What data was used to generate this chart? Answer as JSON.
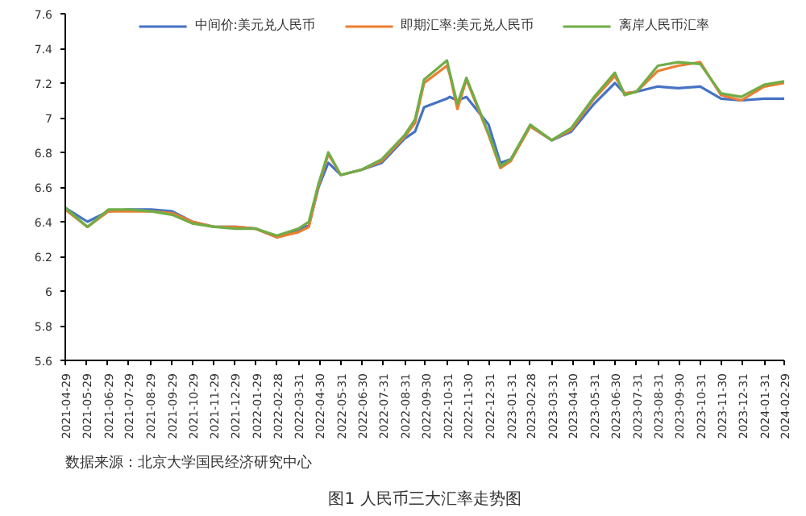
{
  "chart_data": {
    "type": "line",
    "title": "图1 人民币三大汇率走势图",
    "annotations": [
      "数据来源：北京大学国民经济研究中心"
    ],
    "x": [
      "2021-04-29",
      "2021-05-31",
      "2021-06-30",
      "2021-07-30",
      "2021-08-31",
      "2021-09-30",
      "2021-10-29",
      "2021-11-30",
      "2021-12-31",
      "2022-01-28",
      "2022-02-28",
      "2022-03-31",
      "2022-04-15",
      "2022-04-29",
      "2022-05-13",
      "2022-05-31",
      "2022-06-30",
      "2022-07-29",
      "2022-08-31",
      "2022-09-15",
      "2022-09-28",
      "2022-10-31",
      "2022-11-04",
      "2022-11-15",
      "2022-11-28",
      "2022-12-30",
      "2023-01-16",
      "2023-01-31",
      "2023-02-28",
      "2023-03-31",
      "2023-04-28",
      "2023-05-31",
      "2023-06-30",
      "2023-07-14",
      "2023-07-31",
      "2023-08-31",
      "2023-09-29",
      "2023-10-31",
      "2023-11-30",
      "2023-12-29",
      "2024-01-31",
      "2024-02-29"
    ],
    "series": [
      {
        "name": "中间价:美元兑人民币",
        "color": "#4472c4",
        "values": [
          6.48,
          6.4,
          6.46,
          6.47,
          6.47,
          6.46,
          6.4,
          6.37,
          6.37,
          6.36,
          6.31,
          6.35,
          6.38,
          6.6,
          6.74,
          6.67,
          6.7,
          6.74,
          6.88,
          6.92,
          7.06,
          7.11,
          7.12,
          7.1,
          7.12,
          6.96,
          6.74,
          6.76,
          6.95,
          6.87,
          6.92,
          7.08,
          7.2,
          7.14,
          7.15,
          7.18,
          7.17,
          7.18,
          7.11,
          7.1,
          7.11,
          7.11
        ]
      },
      {
        "name": "即期汇率:美元兑人民币",
        "color": "#ed7d31",
        "values": [
          6.47,
          6.37,
          6.46,
          6.46,
          6.46,
          6.45,
          6.4,
          6.37,
          6.37,
          6.36,
          6.31,
          6.34,
          6.37,
          6.61,
          6.79,
          6.67,
          6.7,
          6.75,
          6.89,
          6.97,
          7.2,
          7.3,
          7.25,
          7.05,
          7.22,
          6.9,
          6.71,
          6.75,
          6.95,
          6.87,
          6.93,
          7.11,
          7.24,
          7.14,
          7.15,
          7.27,
          7.3,
          7.32,
          7.13,
          7.1,
          7.18,
          7.2
        ]
      },
      {
        "name": "离岸人民币汇率",
        "color": "#70ad47",
        "values": [
          6.48,
          6.37,
          6.47,
          6.47,
          6.46,
          6.44,
          6.39,
          6.37,
          6.36,
          6.36,
          6.32,
          6.36,
          6.4,
          6.62,
          6.8,
          6.67,
          6.7,
          6.76,
          6.9,
          6.99,
          7.22,
          7.33,
          7.26,
          7.08,
          7.23,
          6.91,
          6.72,
          6.76,
          6.96,
          6.87,
          6.94,
          7.12,
          7.26,
          7.13,
          7.15,
          7.3,
          7.32,
          7.31,
          7.14,
          7.12,
          7.19,
          7.21
        ]
      }
    ],
    "xlim": [
      "2021-04-29",
      "2024-02-29"
    ],
    "xticks": [
      "2021-04-29",
      "2021-05-29",
      "2021-06-29",
      "2021-07-29",
      "2021-08-29",
      "2021-09-29",
      "2021-10-29",
      "2021-11-29",
      "2021-12-29",
      "2022-01-29",
      "2022-02-28",
      "2022-03-31",
      "2022-04-30",
      "2022-05-31",
      "2022-06-30",
      "2022-07-31",
      "2022-08-31",
      "2022-09-30",
      "2022-10-31",
      "2022-11-30",
      "2022-12-31",
      "2023-01-31",
      "2023-02-28",
      "2023-03-31",
      "2023-04-30",
      "2023-05-31",
      "2023-06-30",
      "2023-07-31",
      "2023-08-31",
      "2023-09-30",
      "2023-10-31",
      "2023-11-30",
      "2023-12-31",
      "2024-01-31",
      "2024-02-29"
    ],
    "ylim": [
      5.6,
      7.6
    ],
    "yticks": [
      5.6,
      5.8,
      6,
      6.2,
      6.4,
      6.6,
      6.8,
      7,
      7.2,
      7.4,
      7.6
    ],
    "grid": false,
    "legend": "top",
    "marker": "none",
    "line_style": "solid"
  }
}
